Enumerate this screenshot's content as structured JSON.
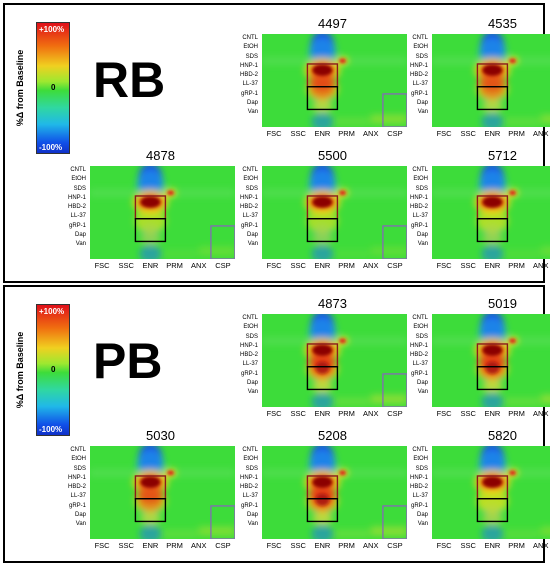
{
  "colorbar": {
    "top_label": "+100%",
    "mid_label": "0",
    "bottom_label": "-100%",
    "axis_label": "%Δ from Baseline"
  },
  "groups": [
    {
      "label": "RB",
      "panels": [
        {
          "title": "4497",
          "intensity": 0.9
        },
        {
          "title": "4535",
          "intensity": 0.85
        },
        {
          "title": "4878",
          "intensity": 0.5
        },
        {
          "title": "5500",
          "intensity": 0.45
        },
        {
          "title": "5712",
          "intensity": 0.55
        }
      ]
    },
    {
      "label": "PB",
      "panels": [
        {
          "title": "4873",
          "intensity": 1.0
        },
        {
          "title": "5019",
          "intensity": 1.0
        },
        {
          "title": "5030",
          "intensity": 0.85
        },
        {
          "title": "5208",
          "intensity": 1.0
        },
        {
          "title": "5820",
          "intensity": 0.7
        }
      ]
    }
  ],
  "row_labels": [
    "CNTL",
    "EtOH",
    "SDS",
    "HNP-1",
    "HBD-2",
    "LL-37",
    "gRP-1",
    "Dap",
    "Van"
  ],
  "column_labels": [
    "FSC",
    "SSC",
    "ENR",
    "PRM",
    "ANX",
    "CSP"
  ],
  "colors": {
    "red": "#e0201a",
    "green": "#3ddc3a",
    "blue": "#1440e6",
    "dark_red": "#8b0000",
    "box_dark_red": "#8b1a1a",
    "box_black": "#000000",
    "box_purple": "#8a60c0"
  }
}
